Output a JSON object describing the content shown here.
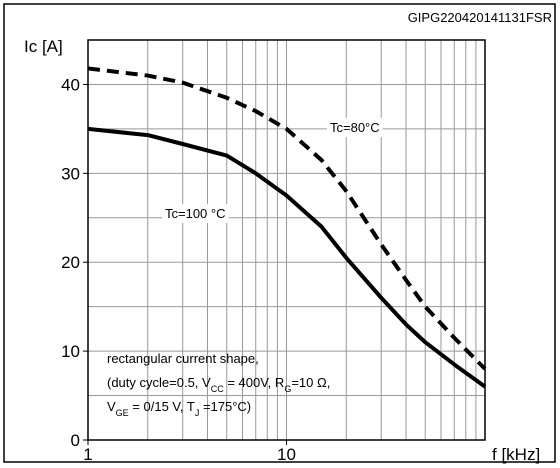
{
  "chart_data": {
    "type": "line",
    "title": "GIPG220420141131FSR",
    "y_label": "Ic [A]",
    "x_label": "f [kHz]",
    "x": [
      1,
      2,
      3,
      5,
      7,
      10,
      15,
      20,
      30,
      40,
      50,
      70,
      100
    ],
    "series": [
      {
        "name": "Tc=80°C",
        "color": "#000000",
        "dash": true,
        "values": [
          41.8,
          41,
          40.2,
          38.5,
          37,
          35,
          31.5,
          28,
          22,
          18,
          15,
          11.5,
          8
        ]
      },
      {
        "name": "Tc=100 °C",
        "color": "#000000",
        "dash": false,
        "values": [
          35,
          34.3,
          33.3,
          32,
          30,
          27.5,
          24,
          20.5,
          16,
          13,
          11,
          8.5,
          6
        ]
      }
    ],
    "xlim": [
      1,
      100
    ],
    "xlog": true,
    "xticks": [
      1,
      10
    ],
    "xgrid": [
      1,
      2,
      3,
      4,
      5,
      6,
      7,
      8,
      9,
      10,
      20,
      30,
      40,
      50,
      60,
      70,
      80,
      90,
      100
    ],
    "ylim": [
      0,
      45
    ],
    "yticks": [
      0,
      10,
      20,
      30,
      40
    ],
    "ygrid": [
      0,
      5,
      10,
      15,
      20,
      25,
      30,
      35,
      40,
      45
    ],
    "grid": true,
    "note": [
      [
        {
          "text": "rectangular current shape,"
        }
      ],
      [
        {
          "text": "(duty cycle=0.5, V"
        },
        {
          "text": "CC",
          "sub": true
        },
        {
          "text": " = 400V, R"
        },
        {
          "text": "G",
          "sub": true
        },
        {
          "text": "=10 Ω,"
        }
      ],
      [
        {
          "text": "V"
        },
        {
          "text": "GE",
          "sub": true
        },
        {
          "text": " = 0/15 V, T"
        },
        {
          "text": "J",
          "sub": true
        },
        {
          "text": " =175°C)"
        }
      ]
    ]
  }
}
